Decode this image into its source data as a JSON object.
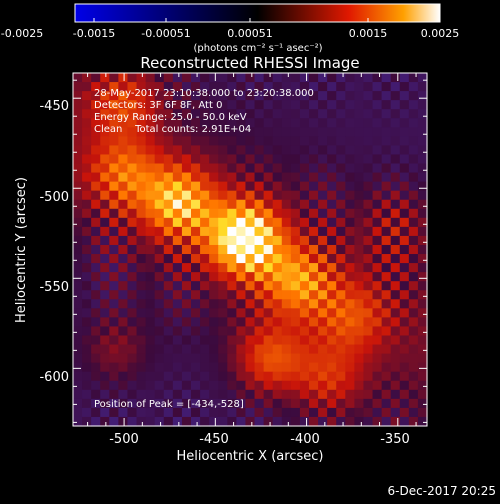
{
  "colorbar": {
    "ticks": [
      "-0.0025",
      "-0.0015",
      "-0.00051",
      "0.00051",
      "0.0015",
      "0.0025"
    ],
    "unit_label": "(photons cm⁻² s⁻¹ asec⁻²)"
  },
  "figure": {
    "title": "Reconstructed RHESSI Image",
    "info_lines": [
      "28-May-2017 23:10:38.000 to 23:20:38.000",
      "Detectors: 3F 6F 8F, Att 0",
      "Energy Range: 25.0 - 50.0 keV",
      "Clean    Total counts: 2.91E+04"
    ],
    "peak_label": "Position of Peak = [-434,-528]",
    "footer_date": "6-Dec-2017 20:25"
  },
  "chart_data": {
    "type": "heatmap",
    "title": "Reconstructed RHESSI Image",
    "xlabel": "Heliocentric X (arcsec)",
    "ylabel": "Heliocentric Y (arcsec)",
    "xlim": [
      -528,
      -334
    ],
    "ylim": [
      -632,
      -436
    ],
    "x_ticks": [
      -500,
      -450,
      -400,
      -350
    ],
    "y_ticks": [
      -450,
      -500,
      -550,
      -600
    ],
    "color_range": [
      -0.0025,
      0.0025
    ],
    "peak_position": [
      -434,
      -528
    ],
    "sources": [
      {
        "x": -434,
        "y": -528,
        "amplitude": 0.0025
      },
      {
        "x": -470,
        "y": -508,
        "amplitude": 0.0017
      },
      {
        "x": -500,
        "y": -492,
        "amplitude": 0.0011
      },
      {
        "x": -405,
        "y": -552,
        "amplitude": 0.0014
      },
      {
        "x": -375,
        "y": -572,
        "amplitude": 0.0009
      },
      {
        "x": -420,
        "y": -595,
        "amplitude": 0.0012
      },
      {
        "x": -388,
        "y": -606,
        "amplitude": 0.0009
      },
      {
        "x": -500,
        "y": -452,
        "amplitude": 0.001
      },
      {
        "x": -505,
        "y": -590,
        "amplitude": 0.0006
      },
      {
        "x": -350,
        "y": -520,
        "amplitude": 0.0005
      }
    ],
    "grid": false
  }
}
